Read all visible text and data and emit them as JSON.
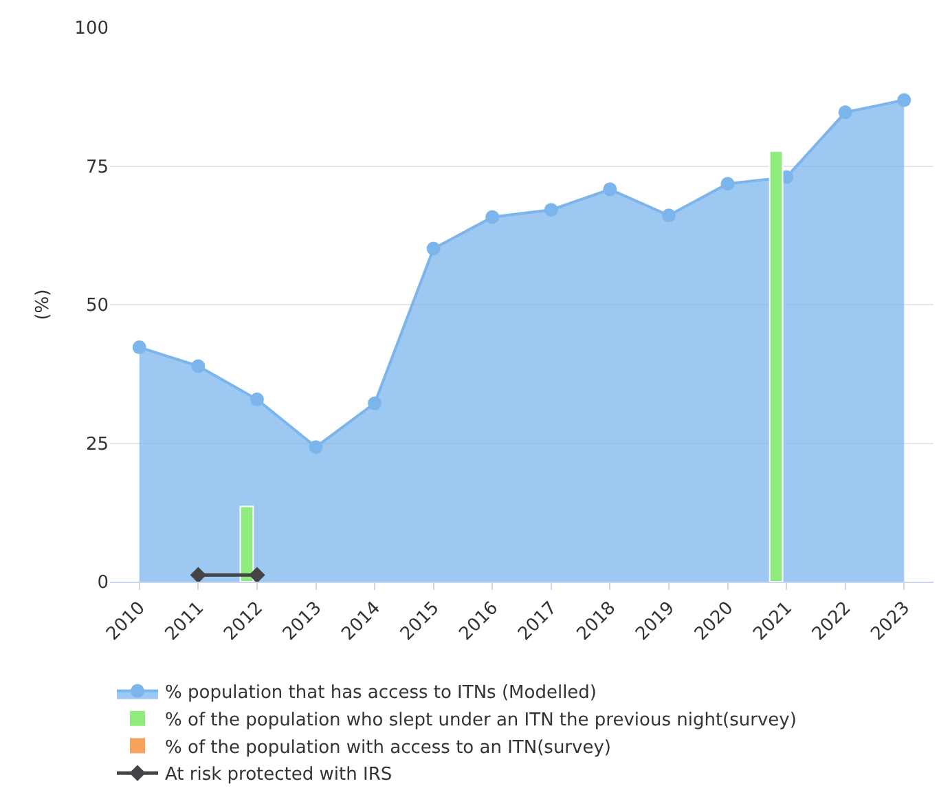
{
  "chart_data": {
    "type": "area",
    "ylabel": "(%)",
    "categories": [
      "2010",
      "2011",
      "2012",
      "2013",
      "2014",
      "2015",
      "2016",
      "2017",
      "2018",
      "2019",
      "2020",
      "2021",
      "2022",
      "2023"
    ],
    "series": [
      {
        "name": "% population that has access to ITNs (Modelled)",
        "color": "#7cb5ec",
        "marker": "circle",
        "values": [
          42.3,
          38.9,
          32.9,
          24.3,
          32.2,
          60.1,
          65.8,
          67.1,
          70.8,
          66.1,
          71.8,
          73.0,
          84.7,
          86.9
        ]
      },
      {
        "name": "% of the population who slept under an ITN the previous night(survey)",
        "type": "bar",
        "color": "#90ed7d",
        "values": [
          null,
          null,
          13.6,
          null,
          null,
          null,
          null,
          null,
          null,
          null,
          null,
          77.7,
          null,
          null
        ]
      },
      {
        "name": "% of the population with access to an ITN(survey)",
        "type": "bar",
        "color": "#f7a35c",
        "values": [
          null,
          null,
          null,
          null,
          null,
          null,
          null,
          null,
          null,
          null,
          null,
          null,
          null,
          null
        ]
      },
      {
        "name": "At risk protected with IRS",
        "type": "line",
        "color": "#434348",
        "marker": "diamond",
        "values": [
          null,
          1.2,
          1.2,
          null,
          null,
          null,
          null,
          null,
          null,
          null,
          null,
          null,
          null,
          null
        ]
      }
    ],
    "ylim": [
      0,
      100
    ],
    "yticks": [
      0,
      25,
      50,
      75,
      100
    ],
    "grid": "y",
    "legend": "bottom"
  }
}
